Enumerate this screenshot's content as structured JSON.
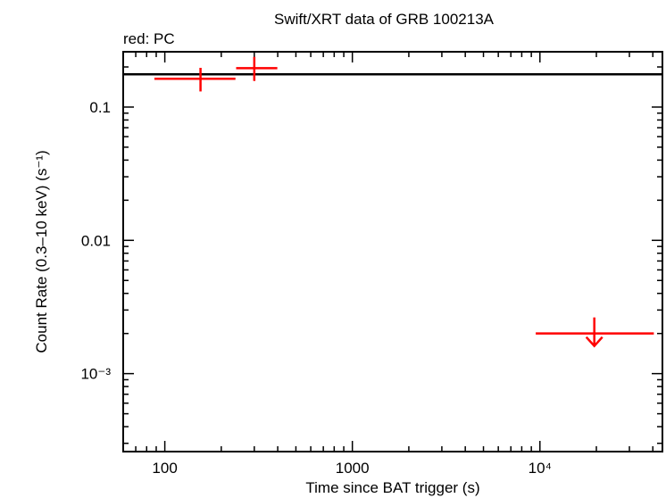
{
  "chart_data": {
    "type": "scatter",
    "title": "Swift/XRT data of GRB 100213A",
    "subtitle": "red: PC",
    "xlabel": "Time since BAT trigger (s)",
    "ylabel": "Count Rate (0.3–10 keV) (s⁻¹)",
    "x_scale": "log",
    "y_scale": "log",
    "xlim": [
      60,
      45000
    ],
    "ylim": [
      0.00026,
      0.26
    ],
    "x_ticks": [
      {
        "value": 100,
        "label": "100"
      },
      {
        "value": 1000,
        "label": "1000"
      },
      {
        "value": 10000,
        "label": "10⁴"
      }
    ],
    "y_ticks": [
      {
        "value": 0.1,
        "label": "0.1"
      },
      {
        "value": 0.01,
        "label": "0.01"
      },
      {
        "value": 0.001,
        "label": "10⁻³"
      }
    ],
    "reference_line": {
      "y": 0.176,
      "color": "#000000"
    },
    "series": [
      {
        "color": "#ff0000",
        "points": [
          {
            "x": 155,
            "x_lo": 88,
            "x_hi": 238,
            "y": 0.163,
            "y_lo": 0.131,
            "y_hi": 0.197
          },
          {
            "x": 300,
            "x_lo": 240,
            "x_hi": 398,
            "y": 0.196,
            "y_lo": 0.157,
            "y_hi": 0.238
          }
        ],
        "upper_limits": [
          {
            "x": 19500,
            "x_lo": 9500,
            "x_hi": 40500,
            "y": 0.002
          }
        ]
      }
    ]
  }
}
